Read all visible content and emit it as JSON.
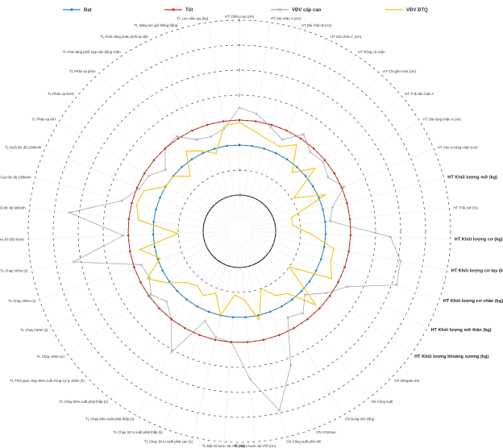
{
  "chart_data": {
    "type": "radar",
    "title": "",
    "legend_position": "top",
    "grid": true,
    "rings": [
      "-2",
      "-1",
      "0",
      "1",
      "2",
      "3",
      "4",
      "5"
    ],
    "rlim": [
      -3,
      5
    ],
    "ring_styles": {
      "-2": "solid-black",
      "-1": "dashed",
      "0": "dashed",
      "1": "dashed",
      "2": "dashed",
      "3": "dashed",
      "4": "dashed",
      "5": "dashed"
    },
    "axes": [
      "HT Chiều cao (cm)",
      "HT Dài chân A (cm)",
      "HT Dài chân B (cm)",
      "HT Dài chân C (cm)",
      "HT Rộng cổ chân",
      "HT Chỉ gân Asin (cm)",
      "HT Tỉ lệ dài chân A",
      "HT Dài rộng chân A (cm)",
      "HT Chu vi cổng chân (cm)",
      "HT Khối lượng mỡ (kg)",
      "HT Tỉ lệ mỡ (%)",
      "HT Khối lượng cơ (kg)",
      "HT Khối lượng cơ tay (kg)",
      "HT Khối lượng cơ chân (kg)",
      "HT Khối lượng mỡ thân (kg)",
      "HT Khối lượng khoáng xương (kg)",
      "CN Wingate test",
      "CN Công suất",
      "CN Dung tích sống",
      "CN VO2max",
      "CN Công suất yếm khí",
      "TL Bật 2 bước tại chỗ (cm)",
      "TL Bật 10 bước tại chỗ (cm)",
      "TL Chạy 30 m xuất phát cao (s)",
      "TL Chạy 30 m xuất phát thấp (s)",
      "TL Chạy 60m xuất phát thấp (s)",
      "TL Chạy 80m xuất phát thấp (s)",
      "TL Thời gian chạy 80m cuối trong cự ly 100m (s)",
      "TL Chạy 150m (s)",
      "TL Chạy 150m (s)",
      "TL Chạy 200m (s)",
      "TL Chạy 300m (s)",
      "TL Bật xa 30 (60) bước",
      "TL Duỗi tốc độ 60km/h",
      "TL Cao tốc độ 100km/h",
      "TL Duỗi tốc độ 100km/h",
      "TL Phản xạ MH",
      "TL Phản xạ NHG",
      "TL Phản xạ phức",
      "TL Khả năng phối hợp vận động chân",
      "TL Khối năng phản phối xạ vận",
      "TL Năng lực giữ thăng bằng",
      "TL Lực nắm tay (kg)"
    ],
    "big_label_axes": [
      9,
      11,
      12,
      13,
      14,
      15
    ],
    "series": [
      {
        "name": "Đạt",
        "color": "#2e86c1",
        "marker": "dot",
        "values": [
          0,
          0,
          0,
          0,
          0,
          0,
          0,
          0,
          0,
          0,
          0,
          0,
          0,
          0,
          0,
          0,
          0,
          0,
          0,
          0,
          0,
          0,
          0,
          0,
          0,
          0,
          0,
          0,
          0,
          0,
          0,
          0,
          0,
          0,
          0,
          0,
          0,
          0,
          0,
          0,
          0,
          0,
          0
        ]
      },
      {
        "name": "Tốt",
        "color": "#c0392b",
        "marker": "dot",
        "values": [
          1,
          1,
          1,
          1,
          1,
          1,
          1,
          1,
          1,
          1,
          1,
          1,
          1,
          1,
          1,
          1,
          1,
          1,
          1,
          1,
          1,
          1,
          1,
          1,
          1,
          1,
          1,
          1,
          1,
          1,
          1,
          1,
          1,
          1,
          1,
          1,
          1,
          1,
          1,
          1,
          1,
          1,
          1
        ]
      },
      {
        "name": "VĐV cấp cao",
        "color": "#a8a8a8",
        "marker": "x",
        "values": [
          1.5,
          1.3,
          0.9,
          0.6,
          1.2,
          0.8,
          0.9,
          0.7,
          1.1,
          0.4,
          0.2,
          2.6,
          3.1,
          3.2,
          1.4,
          0.8,
          0.2,
          0.7,
          0.5,
          2.3,
          3.9,
          2.5,
          1.0,
          0.9,
          0.4,
          2.1,
          1.0,
          0.6,
          0.9,
          0.6,
          0.7,
          3.3,
          1.2,
          3.4,
          1.4,
          0.9,
          0.8,
          0.4,
          1.0,
          1.1,
          0.6,
          0.5,
          0.7
        ]
      },
      {
        "name": "VĐV ĐTQ",
        "color": "#f1c40f",
        "marker": "none",
        "values": [
          0.9,
          0.6,
          0.4,
          0.3,
          0.7,
          -0.3,
          0.5,
          -0.9,
          0.3,
          -1.3,
          -1.3,
          -0.6,
          0.4,
          0.4,
          0.7,
          -1.0,
          0.8,
          -0.3,
          -0.5,
          -1.0,
          0.2,
          -0.7,
          -0.9,
          0.0,
          -0.8,
          -0.5,
          -0.7,
          -0.5,
          0.1,
          0.7,
          -0.1,
          0.6,
          -1.0,
          0.6,
          0.8,
          0.7,
          0.0,
          0.0,
          -0.5,
          0.4,
          0.1,
          -0.2,
          0.8
        ]
      }
    ]
  }
}
